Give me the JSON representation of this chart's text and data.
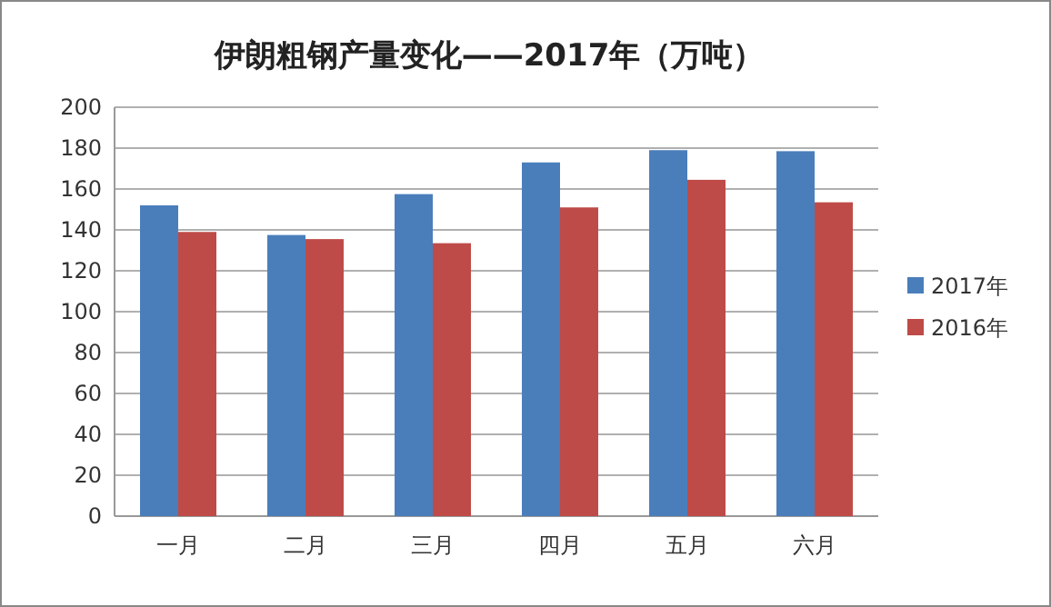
{
  "chart_data": {
    "type": "bar",
    "title": "伊朗粗钢产量变化——2017年（万吨）",
    "categories": [
      "一月",
      "二月",
      "三月",
      "四月",
      "五月",
      "六月"
    ],
    "series": [
      {
        "name": "2017年",
        "color": "#4a7ebb",
        "values": [
          152,
          137.5,
          157.5,
          173,
          179,
          178.5
        ]
      },
      {
        "name": "2016年",
        "color": "#be4b48",
        "values": [
          139,
          135.5,
          133.5,
          151,
          164.5,
          153.5
        ]
      }
    ],
    "ylim": [
      0,
      200
    ],
    "yticks": [
      0,
      20,
      40,
      60,
      80,
      100,
      120,
      140,
      160,
      180,
      200
    ],
    "grid": "y",
    "legend": "right"
  }
}
